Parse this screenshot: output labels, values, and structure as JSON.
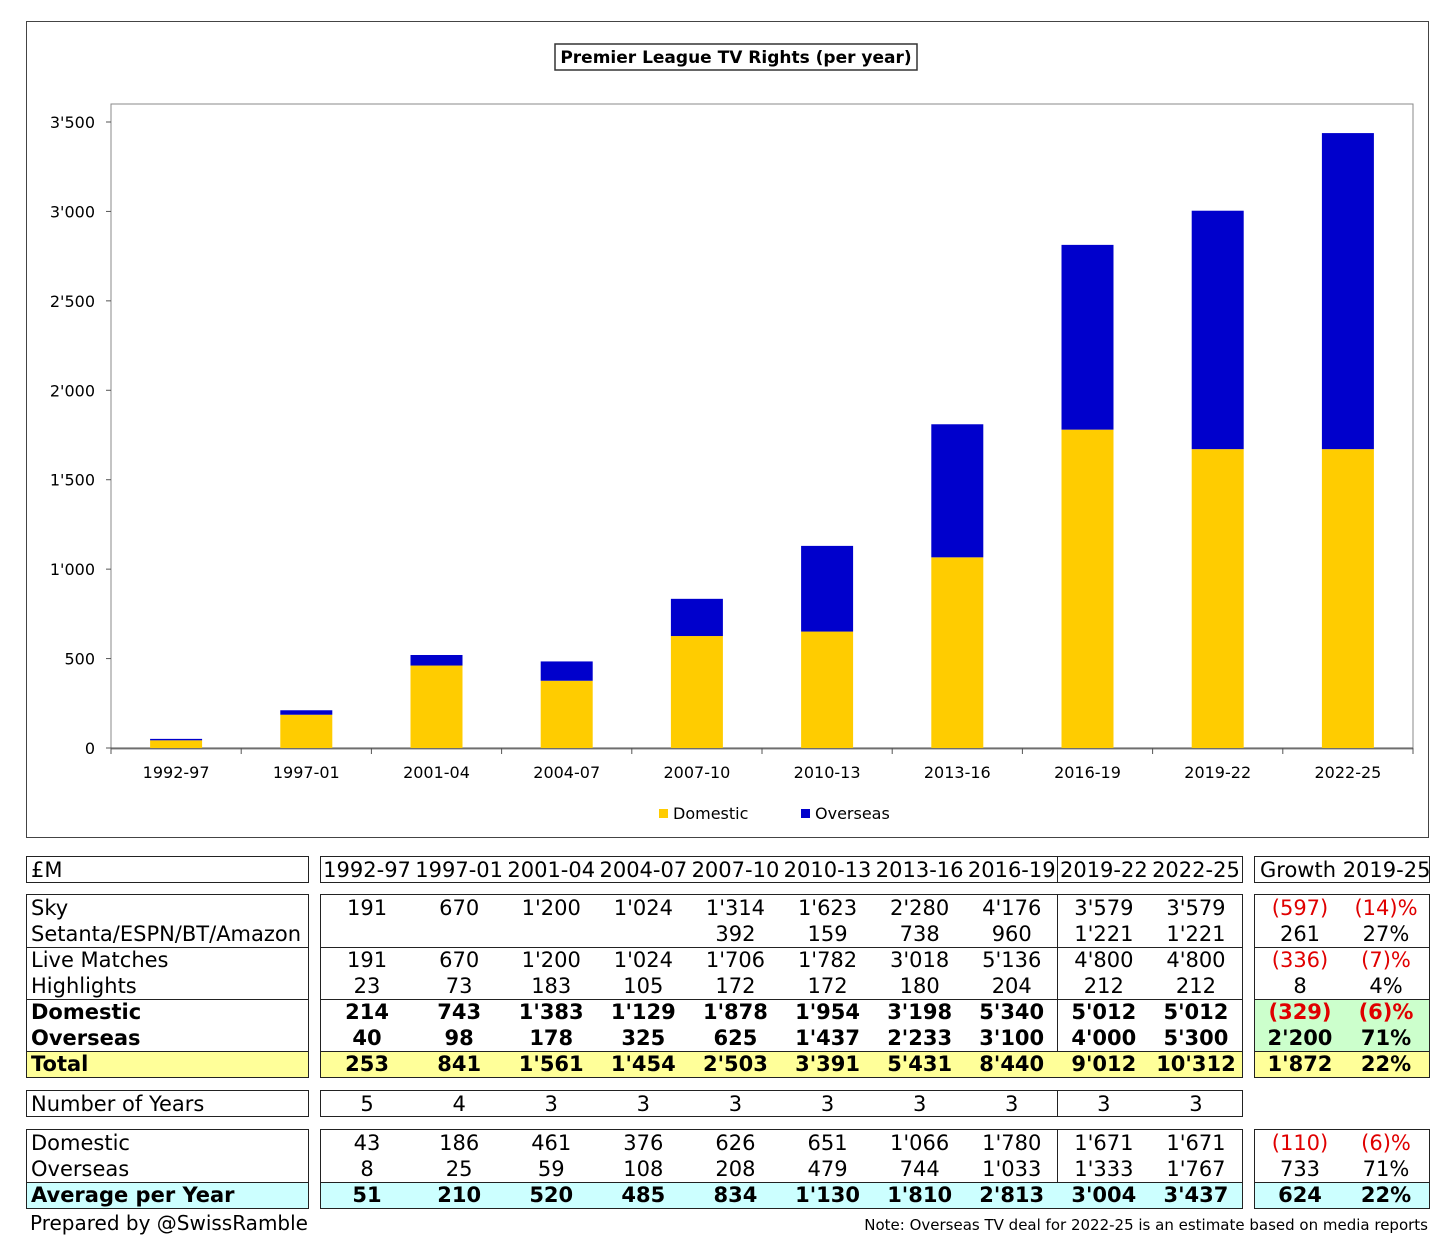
{
  "chart_data": {
    "type": "bar",
    "stacked": true,
    "title": "Premier League TV Rights (per year)",
    "categories": [
      "1992-97",
      "1997-01",
      "2001-04",
      "2004-07",
      "2007-10",
      "2010-13",
      "2013-16",
      "2016-19",
      "2019-22",
      "2022-25"
    ],
    "series": [
      {
        "name": "Domestic",
        "color": "#ffcc00",
        "values": [
          43,
          186,
          461,
          376,
          626,
          651,
          1066,
          1780,
          1671,
          1671
        ]
      },
      {
        "name": "Overseas",
        "color": "#0000cc",
        "values": [
          8,
          25,
          59,
          108,
          208,
          479,
          744,
          1033,
          1333,
          1767
        ]
      }
    ],
    "ylim": [
      0,
      3500
    ],
    "yticks": [
      0,
      500,
      1000,
      1500,
      2000,
      2500,
      3000,
      3500
    ],
    "ytick_labels": [
      "0",
      "500",
      "1'000",
      "1'500",
      "2'000",
      "2'500",
      "3'000",
      "3'500"
    ],
    "xlabel": "",
    "ylabel": "",
    "grid": false,
    "legend_position": "bottom"
  },
  "table": {
    "unit_label": "£M",
    "periods": [
      "1992-97",
      "1997-01",
      "2001-04",
      "2004-07",
      "2007-10",
      "2010-13",
      "2013-16",
      "2016-19",
      "2019-22",
      "2022-25"
    ],
    "growth_header": "Growth 2019-25",
    "block1": [
      {
        "label": "Sky",
        "values": [
          "191",
          "670",
          "1'200",
          "1'024",
          "1'314",
          "1'623",
          "2'280",
          "4'176",
          "3'579",
          "3'579"
        ],
        "growth": [
          "(597)",
          "(14)%"
        ],
        "growth_red": true
      },
      {
        "label": "Setanta/ESPN/BT/Amazon",
        "values": [
          "",
          "",
          "",
          "",
          "392",
          "159",
          "738",
          "960",
          "1'221",
          "1'221"
        ],
        "growth": [
          "261",
          "27%"
        ],
        "growth_red": false
      }
    ],
    "block2": [
      {
        "label": "Live Matches",
        "values": [
          "191",
          "670",
          "1'200",
          "1'024",
          "1'706",
          "1'782",
          "3'018",
          "5'136",
          "4'800",
          "4'800"
        ],
        "growth": [
          "(336)",
          "(7)%"
        ],
        "growth_red": true
      },
      {
        "label": "Highlights",
        "values": [
          "23",
          "73",
          "183",
          "105",
          "172",
          "172",
          "180",
          "204",
          "212",
          "212"
        ],
        "growth": [
          "8",
          "4%"
        ],
        "growth_red": false
      }
    ],
    "block3": [
      {
        "label": "Domestic",
        "values": [
          "214",
          "743",
          "1'383",
          "1'129",
          "1'878",
          "1'954",
          "3'198",
          "5'340",
          "5'012",
          "5'012"
        ],
        "growth": [
          "(329)",
          "(6)%"
        ],
        "growth_red": true
      },
      {
        "label": "Overseas",
        "values": [
          "40",
          "98",
          "178",
          "325",
          "625",
          "1'437",
          "2'233",
          "3'100",
          "4'000",
          "5'300"
        ],
        "growth": [
          "2'200",
          "71%"
        ],
        "growth_red": false
      }
    ],
    "total": {
      "label": "Total",
      "values": [
        "253",
        "841",
        "1'561",
        "1'454",
        "2'503",
        "3'391",
        "5'431",
        "8'440",
        "9'012",
        "10'312"
      ],
      "growth": [
        "1'872",
        "22%"
      ]
    },
    "years": {
      "label": "Number of Years",
      "values": [
        "5",
        "4",
        "3",
        "3",
        "3",
        "3",
        "3",
        "3",
        "3",
        "3"
      ]
    },
    "avg_block": [
      {
        "label": "Domestic",
        "values": [
          "43",
          "186",
          "461",
          "376",
          "626",
          "651",
          "1'066",
          "1'780",
          "1'671",
          "1'671"
        ],
        "growth": [
          "(110)",
          "(6)%"
        ],
        "growth_red": true
      },
      {
        "label": "Overseas",
        "values": [
          "8",
          "25",
          "59",
          "108",
          "208",
          "479",
          "744",
          "1'033",
          "1'333",
          "1'767"
        ],
        "growth": [
          "733",
          "71%"
        ],
        "growth_red": false
      }
    ],
    "avg_total": {
      "label": "Average per Year",
      "values": [
        "51",
        "210",
        "520",
        "485",
        "834",
        "1'130",
        "1'810",
        "2'813",
        "3'004",
        "3'437"
      ],
      "growth": [
        "624",
        "22%"
      ]
    }
  },
  "footer": {
    "prepared_by": "Prepared by @SwissRamble",
    "note": "Note: Overseas TV deal for 2022-25 is an estimate based on media reports"
  }
}
